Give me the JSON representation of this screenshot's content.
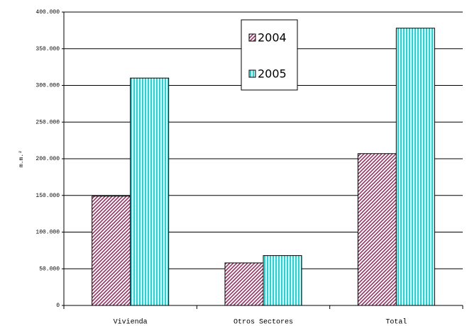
{
  "chart_data": {
    "type": "bar",
    "y_label": "m.m.²",
    "categories": [
      "Vivienda",
      "Otros Sectores",
      "Total"
    ],
    "series": [
      {
        "name": "2004",
        "color": "#993366",
        "values": [
          149000,
          58000,
          207000
        ]
      },
      {
        "name": "2005",
        "color": "#33cccc",
        "values": [
          310000,
          68000,
          378000
        ]
      }
    ],
    "ylim": [
      0,
      400000
    ],
    "yticks": [
      0,
      {
        "value": 50000,
        "label": "50.000"
      },
      {
        "value": 100000,
        "label": "100.000"
      },
      {
        "value": 150000,
        "label": "150.000"
      },
      {
        "value": 200000,
        "label": "200.000"
      },
      {
        "value": 250000,
        "label": "250.000"
      },
      {
        "value": 300000,
        "label": "300.000"
      },
      {
        "value": 350000,
        "label": "350.000"
      },
      {
        "value": 400000,
        "label": "400.000"
      }
    ],
    "grid": true
  }
}
